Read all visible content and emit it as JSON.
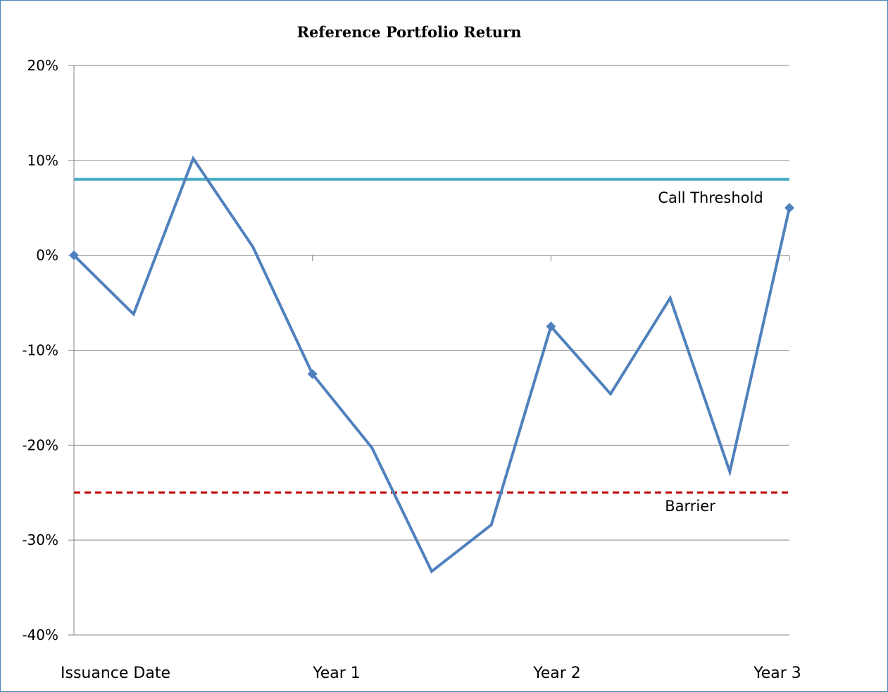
{
  "chart_data": {
    "type": "line",
    "title": "Reference Portfolio Return",
    "xlabel": "",
    "ylabel": "",
    "ylim": [
      -40,
      20
    ],
    "y_ticks": [
      20,
      10,
      0,
      -10,
      -20,
      -30,
      -40
    ],
    "y_tick_labels": [
      "20%",
      "10%",
      "0%",
      "-10%",
      "-20%",
      "-30%",
      "-40%"
    ],
    "categories": [
      "Issuance Date",
      "Year 1",
      "Year 2",
      "Year 3"
    ],
    "grid": true,
    "series": [
      {
        "color": "#4f81bd",
        "x": [
          0,
          0.25,
          0.5,
          0.75,
          1,
          1.25,
          1.5,
          1.75,
          2,
          2.25,
          2.5,
          2.75,
          3
        ],
        "values": [
          0,
          -6.2,
          10.2,
          0.9,
          -12.5,
          -20.3,
          -33.3,
          -28.4,
          -7.5,
          -14.6,
          -4.5,
          -22.8,
          5.0
        ],
        "marker_x": [
          0,
          1,
          2,
          3
        ]
      }
    ],
    "reference_lines": [
      {
        "label": "Call Threshold",
        "value": 8,
        "color": "#4bacc6",
        "style": "solid"
      },
      {
        "label": "Barrier",
        "value": -25,
        "color": "#c00000",
        "style": "dashed"
      }
    ]
  }
}
